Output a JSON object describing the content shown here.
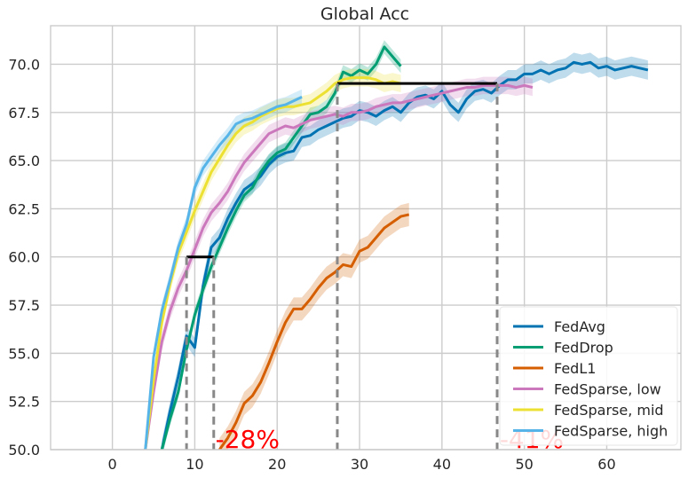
{
  "chart_data": {
    "type": "line",
    "title": "Global Acc",
    "xlabel": "",
    "ylabel": "",
    "xlim": [
      -7.5,
      69
    ],
    "ylim": [
      50,
      72
    ],
    "xticks": [
      "0",
      "10",
      "20",
      "30",
      "40",
      "50",
      "60"
    ],
    "yticks": [
      "50.0",
      "52.5",
      "55.0",
      "57.5",
      "60.0",
      "62.5",
      "65.0",
      "67.5",
      "70.0"
    ],
    "grid": true,
    "legend_position": "lower-right",
    "series": [
      {
        "name": "FedAvg",
        "color": "#0173b2",
        "band": 0.5,
        "points": [
          [
            6,
            50.0
          ],
          [
            7,
            52.0
          ],
          [
            8,
            53.8
          ],
          [
            9,
            55.9
          ],
          [
            10,
            55.3
          ],
          [
            11,
            58.5
          ],
          [
            12,
            60.5
          ],
          [
            13,
            61.0
          ],
          [
            14,
            62.0
          ],
          [
            15,
            62.8
          ],
          [
            16,
            63.5
          ],
          [
            17,
            63.8
          ],
          [
            18,
            64.2
          ],
          [
            19,
            64.8
          ],
          [
            20,
            65.2
          ],
          [
            21,
            65.4
          ],
          [
            22,
            65.5
          ],
          [
            23,
            66.2
          ],
          [
            24,
            66.3
          ],
          [
            25,
            66.6
          ],
          [
            26,
            66.8
          ],
          [
            27,
            67.0
          ],
          [
            28,
            67.2
          ],
          [
            29,
            67.3
          ],
          [
            30,
            67.6
          ],
          [
            31,
            67.5
          ],
          [
            32,
            67.3
          ],
          [
            33,
            67.6
          ],
          [
            34,
            67.8
          ],
          [
            35,
            67.5
          ],
          [
            36,
            68.0
          ],
          [
            37,
            68.3
          ],
          [
            38,
            68.4
          ],
          [
            39,
            68.2
          ],
          [
            40,
            68.6
          ],
          [
            41,
            67.9
          ],
          [
            42,
            67.5
          ],
          [
            43,
            68.2
          ],
          [
            44,
            68.6
          ],
          [
            45,
            68.7
          ],
          [
            46,
            68.5
          ],
          [
            47,
            68.9
          ],
          [
            48,
            69.2
          ],
          [
            49,
            69.2
          ],
          [
            50,
            69.5
          ],
          [
            51,
            69.5
          ],
          [
            52,
            69.7
          ],
          [
            53,
            69.5
          ],
          [
            54,
            69.7
          ],
          [
            55,
            69.8
          ],
          [
            56,
            70.1
          ],
          [
            57,
            70.0
          ],
          [
            58,
            70.1
          ],
          [
            59,
            69.8
          ],
          [
            60,
            69.9
          ],
          [
            61,
            69.7
          ],
          [
            62,
            69.8
          ],
          [
            63,
            69.9
          ],
          [
            64,
            69.8
          ],
          [
            65,
            69.7
          ]
        ]
      },
      {
        "name": "FedDrop",
        "color": "#029e73",
        "band": 0.35,
        "points": [
          [
            6,
            50.0
          ],
          [
            7,
            51.6
          ],
          [
            8,
            53.0
          ],
          [
            9,
            55.2
          ],
          [
            10,
            57.0
          ],
          [
            11,
            58.3
          ],
          [
            12,
            59.5
          ],
          [
            13,
            60.5
          ],
          [
            14,
            61.5
          ],
          [
            15,
            62.4
          ],
          [
            16,
            63.2
          ],
          [
            17,
            63.6
          ],
          [
            18,
            64.4
          ],
          [
            19,
            65.0
          ],
          [
            20,
            65.4
          ],
          [
            21,
            65.6
          ],
          [
            22,
            66.2
          ],
          [
            23,
            66.8
          ],
          [
            24,
            67.4
          ],
          [
            25,
            67.5
          ],
          [
            26,
            67.8
          ],
          [
            27,
            68.5
          ],
          [
            28,
            69.6
          ],
          [
            29,
            69.4
          ],
          [
            30,
            69.7
          ],
          [
            31,
            69.5
          ],
          [
            32,
            70.0
          ],
          [
            33,
            70.9
          ],
          [
            34,
            70.4
          ],
          [
            35,
            69.9
          ]
        ]
      },
      {
        "name": "FedL1",
        "color": "#d55e00",
        "band": 0.6,
        "points": [
          [
            13,
            50.0
          ],
          [
            14,
            50.6
          ],
          [
            15,
            51.4
          ],
          [
            16,
            52.4
          ],
          [
            17,
            52.8
          ],
          [
            18,
            53.5
          ],
          [
            19,
            54.5
          ],
          [
            20,
            55.6
          ],
          [
            21,
            56.6
          ],
          [
            22,
            57.3
          ],
          [
            23,
            57.3
          ],
          [
            24,
            57.8
          ],
          [
            25,
            58.4
          ],
          [
            26,
            58.9
          ],
          [
            27,
            59.2
          ],
          [
            28,
            59.6
          ],
          [
            29,
            59.5
          ],
          [
            30,
            60.3
          ],
          [
            31,
            60.5
          ],
          [
            32,
            61.0
          ],
          [
            33,
            61.5
          ],
          [
            34,
            61.8
          ],
          [
            35,
            62.1
          ],
          [
            36,
            62.2
          ]
        ]
      },
      {
        "name": "FedSparse, low",
        "color": "#cc78bc",
        "band": 0.45,
        "points": [
          [
            4,
            50.0
          ],
          [
            5,
            53.0
          ],
          [
            6,
            55.6
          ],
          [
            7,
            57.2
          ],
          [
            8,
            58.4
          ],
          [
            9,
            59.3
          ],
          [
            10,
            60.4
          ],
          [
            11,
            61.5
          ],
          [
            12,
            62.3
          ],
          [
            13,
            62.8
          ],
          [
            14,
            63.4
          ],
          [
            15,
            64.2
          ],
          [
            16,
            64.9
          ],
          [
            17,
            65.4
          ],
          [
            18,
            65.9
          ],
          [
            19,
            66.4
          ],
          [
            20,
            66.6
          ],
          [
            21,
            66.8
          ],
          [
            22,
            66.7
          ],
          [
            23,
            66.9
          ],
          [
            24,
            67.1
          ],
          [
            25,
            67.2
          ],
          [
            26,
            67.3
          ],
          [
            27,
            67.4
          ],
          [
            28,
            67.3
          ],
          [
            29,
            67.5
          ],
          [
            30,
            67.5
          ],
          [
            31,
            67.6
          ],
          [
            32,
            67.8
          ],
          [
            33,
            67.9
          ],
          [
            34,
            68.0
          ],
          [
            35,
            68.0
          ],
          [
            36,
            68.1
          ],
          [
            37,
            68.2
          ],
          [
            38,
            68.3
          ],
          [
            39,
            68.4
          ],
          [
            40,
            68.5
          ],
          [
            41,
            68.6
          ],
          [
            42,
            68.7
          ],
          [
            43,
            68.8
          ],
          [
            44,
            68.8
          ],
          [
            45,
            68.9
          ],
          [
            46,
            68.9
          ],
          [
            47,
            68.9
          ],
          [
            48,
            68.9
          ],
          [
            49,
            68.8
          ],
          [
            50,
            68.9
          ],
          [
            51,
            68.8
          ]
        ]
      },
      {
        "name": "FedSparse, mid",
        "color": "#ece133",
        "band": 0.45,
        "points": [
          [
            4,
            50.0
          ],
          [
            5,
            53.6
          ],
          [
            6,
            56.6
          ],
          [
            7,
            58.6
          ],
          [
            8,
            60.2
          ],
          [
            9,
            61.3
          ],
          [
            10,
            62.4
          ],
          [
            11,
            63.4
          ],
          [
            12,
            64.4
          ],
          [
            13,
            65.1
          ],
          [
            14,
            65.8
          ],
          [
            15,
            66.4
          ],
          [
            16,
            66.8
          ],
          [
            17,
            67.0
          ],
          [
            18,
            67.3
          ],
          [
            19,
            67.5
          ],
          [
            20,
            67.7
          ],
          [
            21,
            67.8
          ],
          [
            22,
            67.8
          ],
          [
            23,
            67.9
          ],
          [
            24,
            68.0
          ],
          [
            25,
            68.3
          ],
          [
            26,
            68.6
          ],
          [
            27,
            69.0
          ],
          [
            28,
            69.2
          ],
          [
            29,
            69.3
          ],
          [
            30,
            69.3
          ],
          [
            31,
            69.3
          ],
          [
            32,
            69.2
          ],
          [
            33,
            69.0
          ],
          [
            34,
            69.1
          ],
          [
            35,
            69.0
          ]
        ]
      },
      {
        "name": "FedSparse, high",
        "color": "#56b4e9",
        "band": 0.4,
        "points": [
          [
            4,
            50.0
          ],
          [
            5,
            54.8
          ],
          [
            6,
            57.2
          ],
          [
            7,
            58.8
          ],
          [
            8,
            60.5
          ],
          [
            9,
            61.7
          ],
          [
            10,
            63.6
          ],
          [
            11,
            64.6
          ],
          [
            12,
            65.2
          ],
          [
            13,
            65.8
          ],
          [
            14,
            66.3
          ],
          [
            15,
            66.9
          ],
          [
            16,
            67.1
          ],
          [
            17,
            67.2
          ],
          [
            18,
            67.4
          ],
          [
            19,
            67.6
          ],
          [
            20,
            67.8
          ],
          [
            21,
            67.9
          ],
          [
            22,
            68.1
          ],
          [
            23,
            68.3
          ]
        ]
      }
    ],
    "reference_lines": [
      {
        "kind": "horizontal",
        "y": 60.0,
        "x_start": 9,
        "x_end": 12.3,
        "color": "#000000"
      },
      {
        "kind": "horizontal",
        "y": 69.0,
        "x_start": 27.3,
        "x_end": 46.7,
        "color": "#000000"
      },
      {
        "kind": "vertical",
        "x": 9,
        "y_top": 60.0,
        "color": "#888888"
      },
      {
        "kind": "vertical",
        "x": 12.3,
        "y_top": 60.0,
        "color": "#888888"
      },
      {
        "kind": "vertical",
        "x": 27.3,
        "y_top": 69.0,
        "color": "#888888"
      },
      {
        "kind": "vertical",
        "x": 46.7,
        "y_top": 69.0,
        "color": "#888888"
      }
    ],
    "annotations": [
      {
        "text": "-28%",
        "x": 12.5,
        "y": 50.1,
        "color": "#ff0000"
      },
      {
        "text": "-41%",
        "x": 47.0,
        "y": 50.1,
        "color": "#ff0000"
      }
    ]
  }
}
